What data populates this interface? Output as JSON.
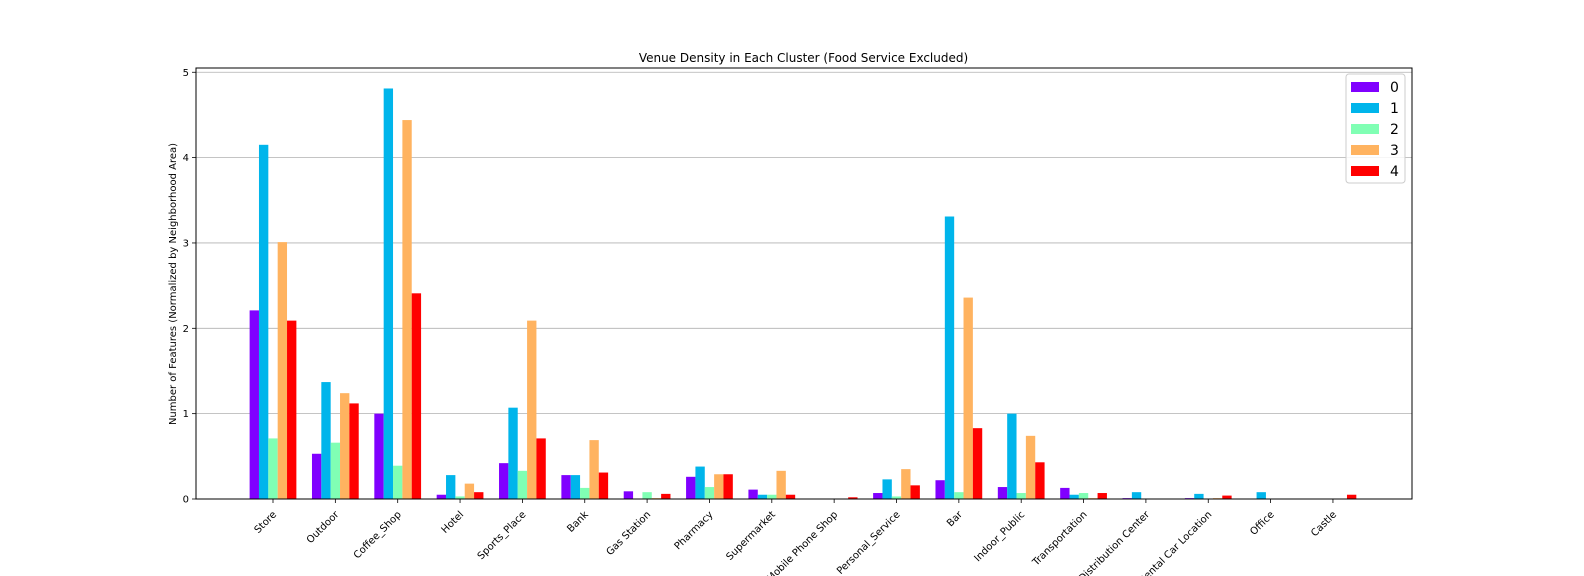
{
  "chart_data": {
    "type": "bar",
    "title": "Venue Density in Each Cluster (Food Service Excluded)",
    "xlabel": "",
    "ylabel": "Number of Features (Normalized by Neighborhood Area)",
    "ylim": [
      0,
      5.05
    ],
    "yticks": [
      0,
      1,
      2,
      3,
      4,
      5
    ],
    "grid": "y",
    "legend_position": "top-right",
    "categories": [
      "Store",
      "Outdoor",
      "Coffee_Shop",
      "Hotel",
      "Sports_Place",
      "Bank",
      "Gas Station",
      "Pharmacy",
      "Supermarket",
      "Mobile Phone Shop",
      "Personal_Service",
      "Bar",
      "Indoor_Public",
      "Transportation",
      "Distribution Center",
      "Rental Car Location",
      "Office",
      "Castle"
    ],
    "series": [
      {
        "name": "0",
        "color": "#8000ff",
        "values": [
          2.21,
          0.53,
          1.0,
          0.05,
          0.42,
          0.28,
          0.09,
          0.26,
          0.11,
          0.0,
          0.07,
          0.22,
          0.14,
          0.13,
          0.01,
          0.01,
          0.0,
          0.0
        ]
      },
      {
        "name": "1",
        "color": "#00b5eb",
        "values": [
          4.15,
          1.37,
          4.81,
          0.28,
          1.07,
          0.28,
          0.0,
          0.38,
          0.05,
          0.0,
          0.23,
          3.31,
          1.0,
          0.05,
          0.08,
          0.06,
          0.08,
          0.0
        ]
      },
      {
        "name": "2",
        "color": "#80ffb4",
        "values": [
          0.71,
          0.66,
          0.39,
          0.03,
          0.33,
          0.13,
          0.08,
          0.14,
          0.05,
          0.0,
          0.03,
          0.08,
          0.07,
          0.07,
          0.0,
          0.0,
          0.0,
          0.0
        ]
      },
      {
        "name": "3",
        "color": "#ffb360",
        "values": [
          3.01,
          1.24,
          4.44,
          0.18,
          2.09,
          0.69,
          0.01,
          0.29,
          0.33,
          0.0,
          0.35,
          2.36,
          0.74,
          0.01,
          0.0,
          0.01,
          0.0,
          0.0
        ]
      },
      {
        "name": "4",
        "color": "#ff0000",
        "values": [
          2.09,
          1.12,
          2.41,
          0.08,
          0.71,
          0.31,
          0.06,
          0.29,
          0.05,
          0.02,
          0.16,
          0.83,
          0.43,
          0.07,
          0.0,
          0.04,
          0.0,
          0.05
        ]
      }
    ]
  }
}
